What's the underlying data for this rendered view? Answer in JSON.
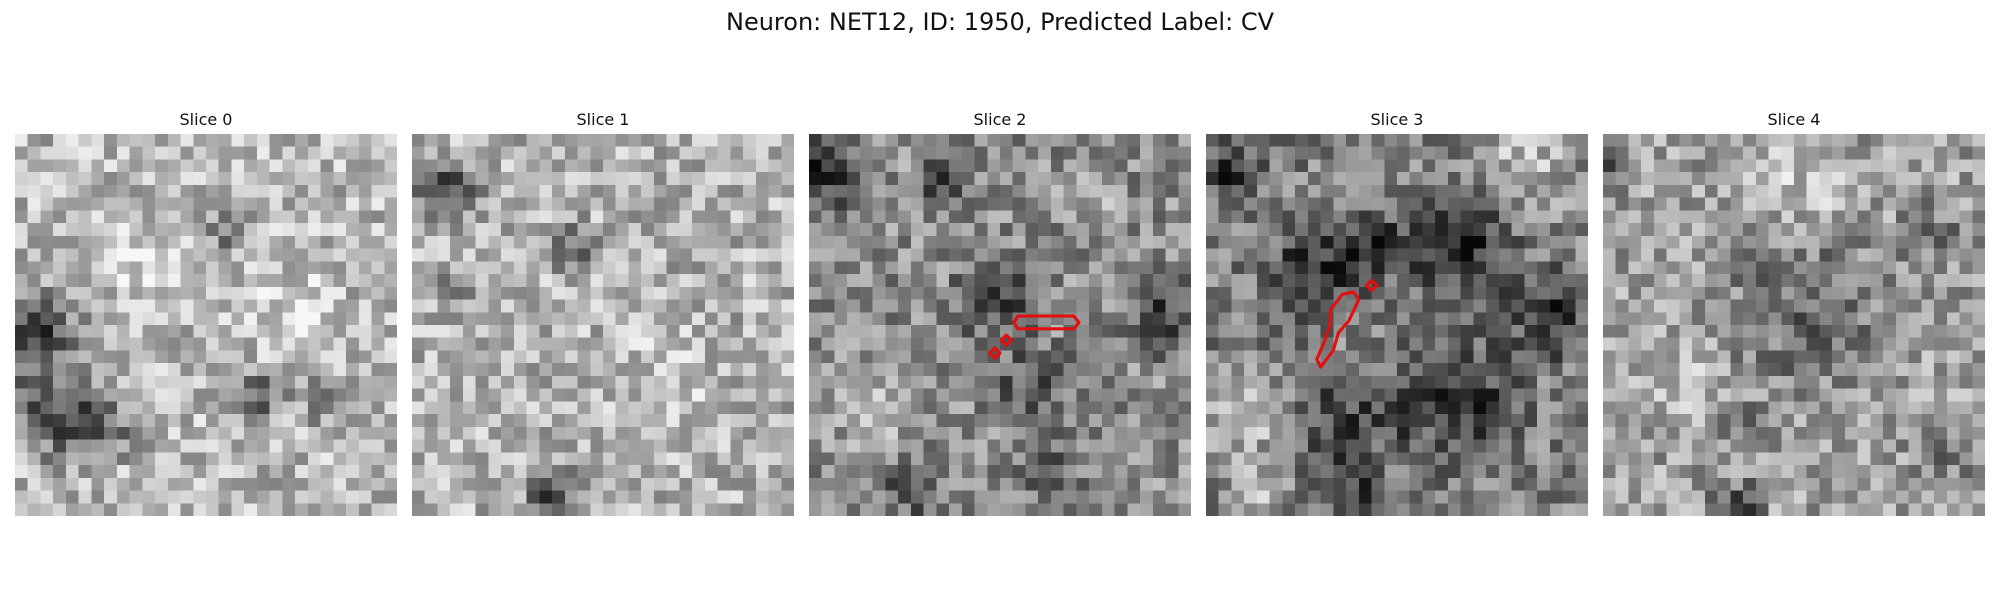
{
  "figure": {
    "title": "Neuron: NET12, ID: 1950, Predicted Label: CV"
  },
  "contour_color": "#e01010",
  "slices": [
    {
      "title": "Slice 0"
    },
    {
      "title": "Slice 1"
    },
    {
      "title": "Slice 2"
    },
    {
      "title": "Slice 3"
    },
    {
      "title": "Slice 4"
    }
  ]
}
